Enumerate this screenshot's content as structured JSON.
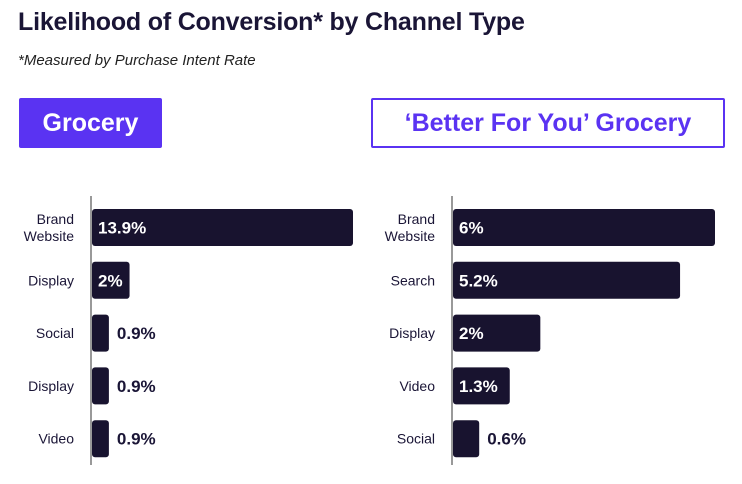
{
  "header": {
    "title": "Likelihood of Conversion* by Channel Type",
    "subtitle": "*Measured by Purchase Intent Rate"
  },
  "tabs": [
    {
      "label": "Grocery",
      "active": true
    },
    {
      "label": "‘Better For You’ Grocery",
      "active": false
    }
  ],
  "colors": {
    "bar": "#18132f",
    "accent": "#5a33f2",
    "text": "#1a1536"
  },
  "chart_data": [
    {
      "type": "bar",
      "orientation": "horizontal",
      "title": "Grocery",
      "categories": [
        [
          "Brand",
          "Website"
        ],
        [
          "Display"
        ],
        [
          "Social"
        ],
        [
          "Display"
        ],
        [
          "Video"
        ]
      ],
      "values": [
        13.9,
        2,
        0.9,
        0.9,
        0.9
      ],
      "value_labels": [
        "13.9%",
        "2%",
        "0.9%",
        "0.9%",
        "0.9%"
      ],
      "xlim": [
        0,
        13.9
      ]
    },
    {
      "type": "bar",
      "orientation": "horizontal",
      "title": "‘Better For You’ Grocery",
      "categories": [
        [
          "Brand",
          "Website"
        ],
        [
          "Search"
        ],
        [
          "Display"
        ],
        [
          "Video"
        ],
        [
          "Social"
        ]
      ],
      "values": [
        6,
        5.2,
        2,
        1.3,
        0.6
      ],
      "value_labels": [
        "6%",
        "5.2%",
        "2%",
        "1.3%",
        "0.6%"
      ],
      "xlim": [
        0,
        6
      ]
    }
  ]
}
